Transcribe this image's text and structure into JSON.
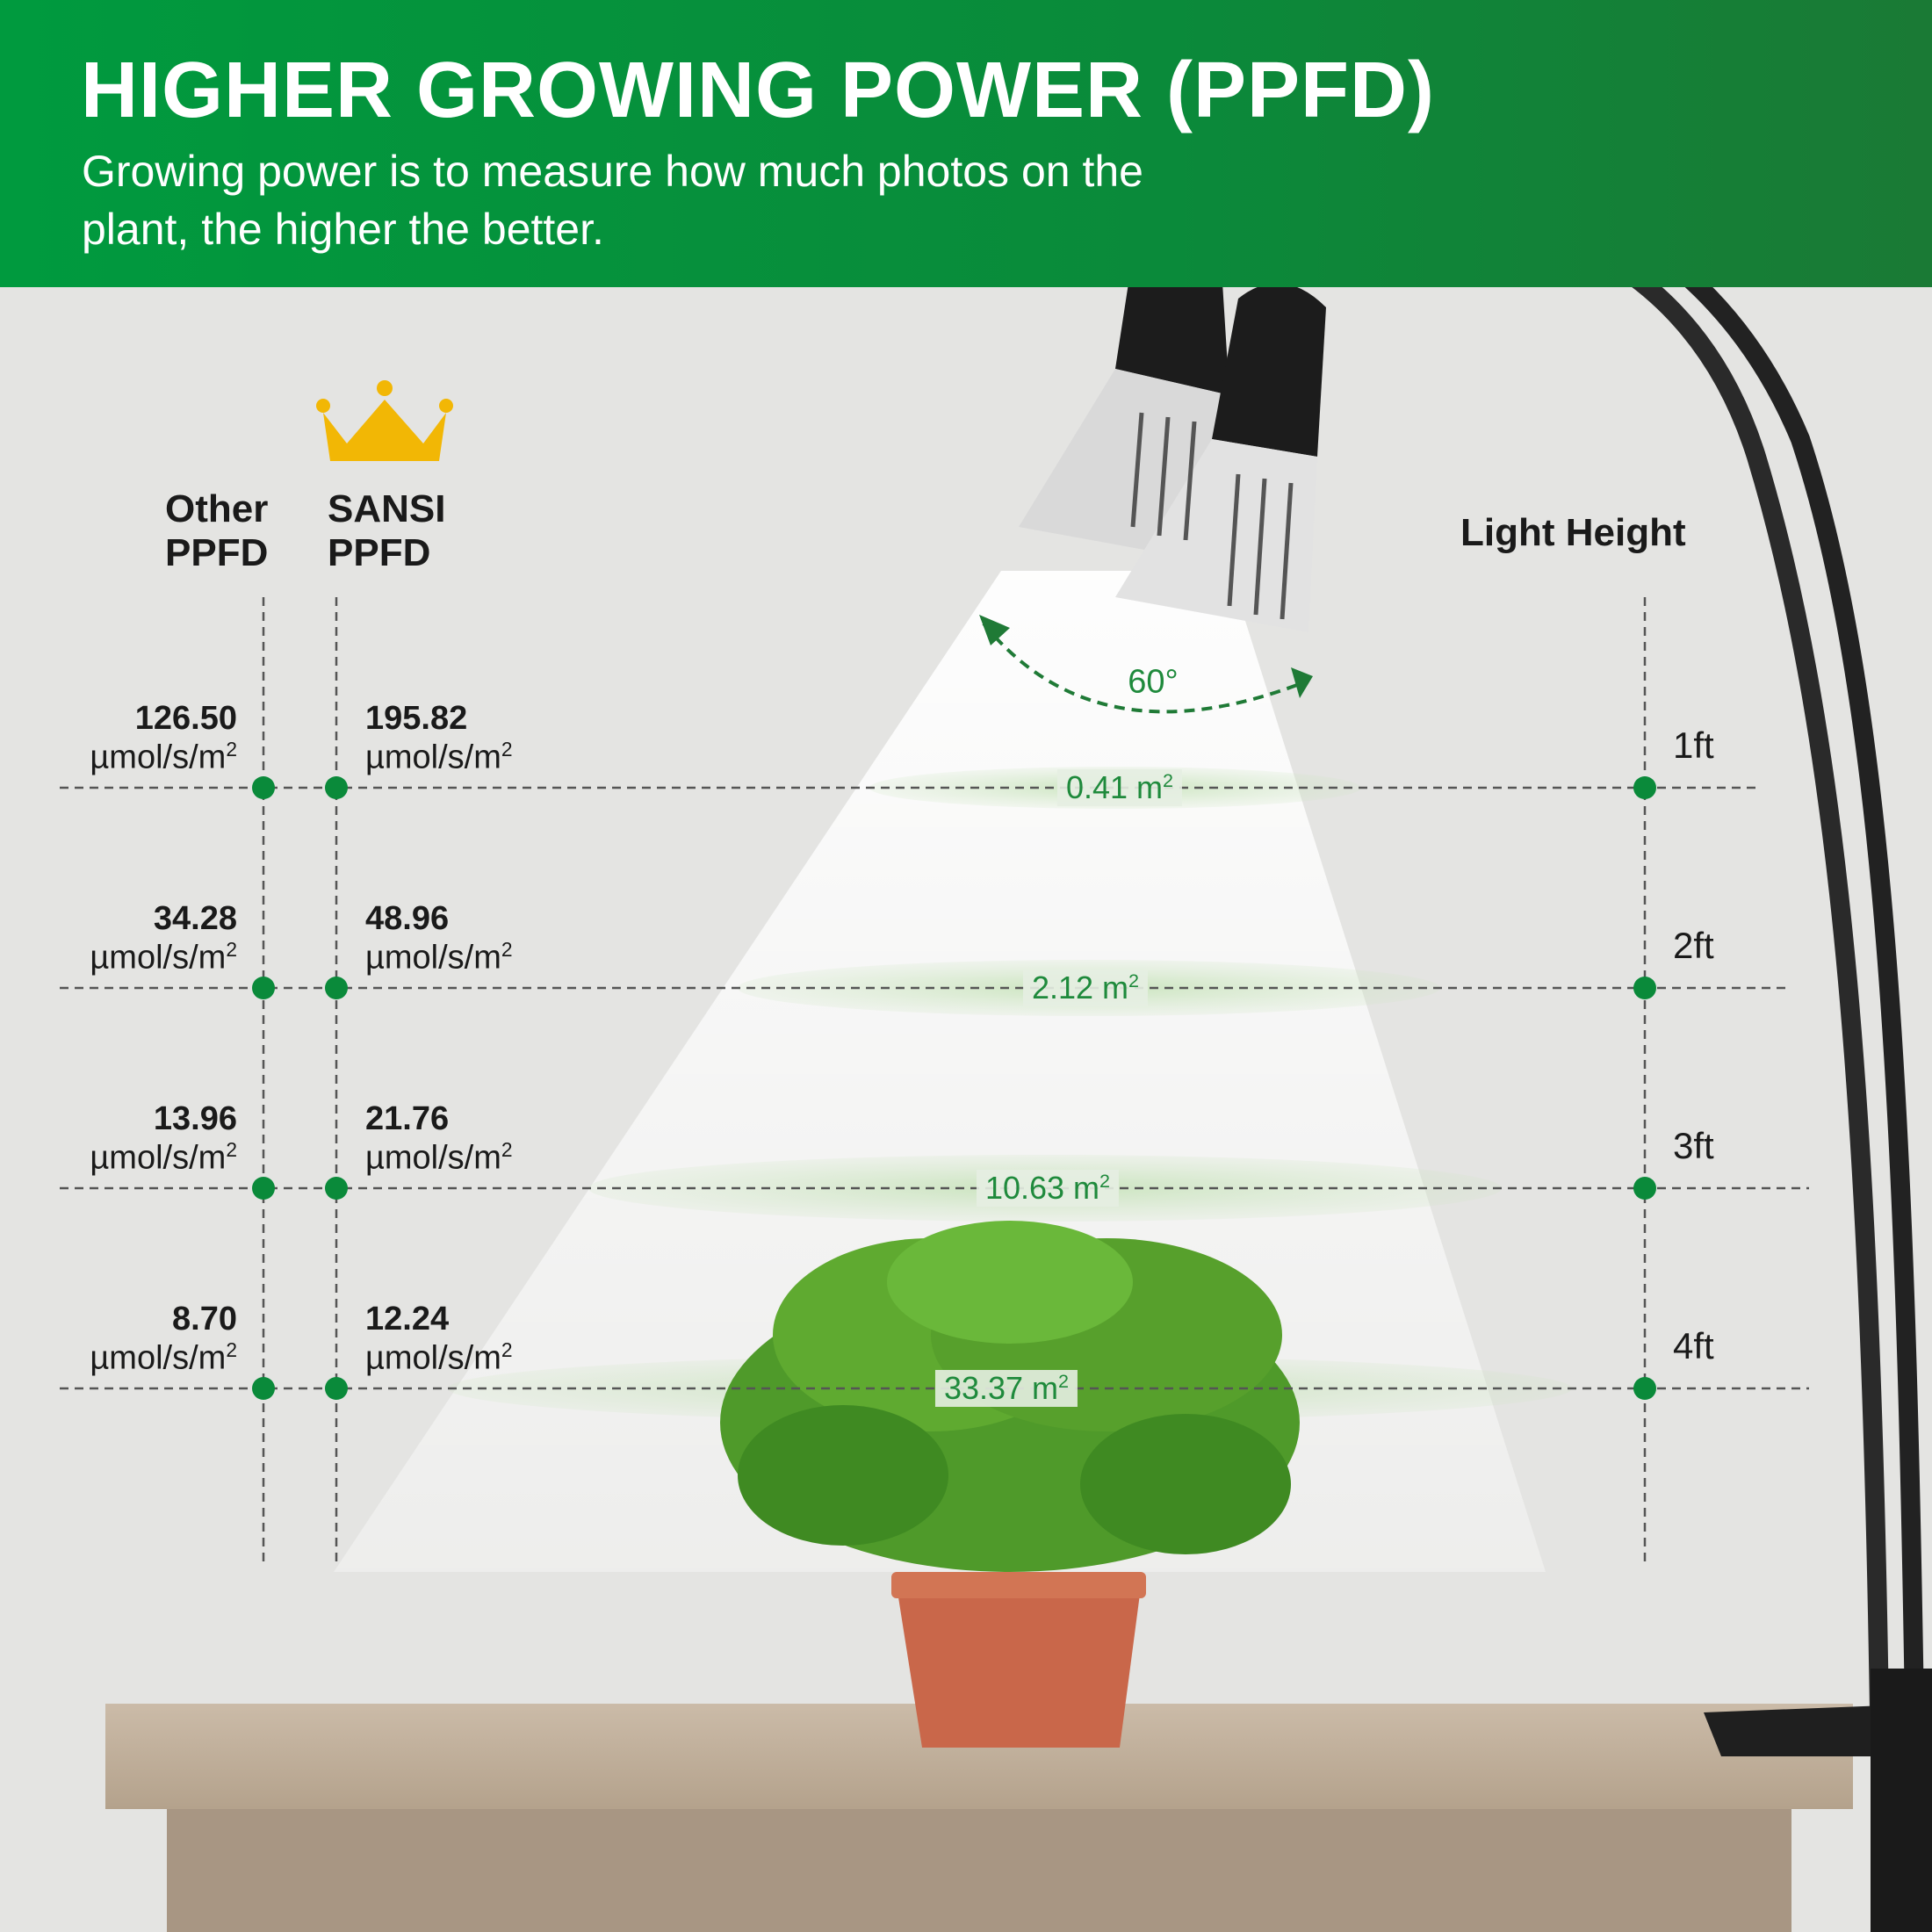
{
  "header": {
    "title": "HIGHER GROWING POWER (PPFD)",
    "subtitle": "Growing power is to measure how much photos on the plant, the higher the better."
  },
  "columns": {
    "other": "Other PPFD",
    "sansi": "SANSI PPFD",
    "height": "Light Height"
  },
  "beam_angle": "60°",
  "unit": "µmol/s/m",
  "unit_sup": "2",
  "rows": [
    {
      "height": "1ft",
      "other": "126.50",
      "sansi": "195.82",
      "area": "0.41 m",
      "area_sup": "2"
    },
    {
      "height": "2ft",
      "other": "34.28",
      "sansi": "48.96",
      "area": "2.12 m",
      "area_sup": "2"
    },
    {
      "height": "3ft",
      "other": "13.96",
      "sansi": "21.76",
      "area": "10.63 m",
      "area_sup": "2"
    },
    {
      "height": "4ft",
      "other": "8.70",
      "sansi": "12.24",
      "area": "33.37 m",
      "area_sup": "2"
    }
  ],
  "colors": {
    "brand_green": "#009a3e",
    "dot_green": "#0a8a3a",
    "crown_gold": "#f2b705"
  },
  "icons": [
    "crown-icon",
    "lamp-illustration",
    "plant-illustration"
  ]
}
